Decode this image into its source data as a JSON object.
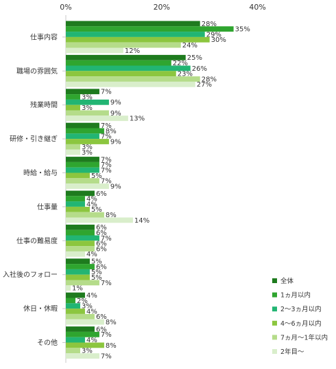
{
  "chart_data": {
    "type": "bar",
    "orientation": "horizontal",
    "title": "",
    "xlabel": "",
    "ylabel": "",
    "xlim": [
      0,
      40
    ],
    "x_ticks": [
      "0%",
      "20%",
      "40%"
    ],
    "tick_values": [
      0,
      20,
      40
    ],
    "value_suffix": "%",
    "grid": false,
    "legend_position": "bottom-right",
    "categories": [
      "仕事内容",
      "職場の雰囲気",
      "残業時間",
      "研修・引き継ぎ",
      "時給・給与",
      "仕事量",
      "仕事の難易度",
      "入社後のフォロー",
      "休日・休暇",
      "その他"
    ],
    "series": [
      {
        "name": "全体",
        "color": "#1e7b1e",
        "values": [
          28,
          25,
          7,
          7,
          7,
          6,
          6,
          5,
          4,
          6
        ]
      },
      {
        "name": "1ヵ月以内",
        "color": "#2fa52f",
        "values": [
          35,
          22,
          3,
          8,
          7,
          4,
          6,
          6,
          2,
          7
        ]
      },
      {
        "name": "2～3ヵ月以内",
        "color": "#22b573",
        "values": [
          29,
          26,
          9,
          7,
          7,
          4,
          7,
          5,
          3,
          4
        ]
      },
      {
        "name": "4～6ヵ月以内",
        "color": "#8cc63f",
        "values": [
          30,
          23,
          3,
          9,
          5,
          5,
          6,
          5,
          4,
          8
        ]
      },
      {
        "name": "7ヵ月～1年以内",
        "color": "#b5dc8a",
        "values": [
          24,
          28,
          9,
          3,
          7,
          8,
          6,
          7,
          6,
          3
        ]
      },
      {
        "name": "2年目～",
        "color": "#d9eecb",
        "values": [
          12,
          27,
          13,
          3,
          9,
          14,
          4,
          1,
          8,
          7
        ]
      }
    ]
  }
}
